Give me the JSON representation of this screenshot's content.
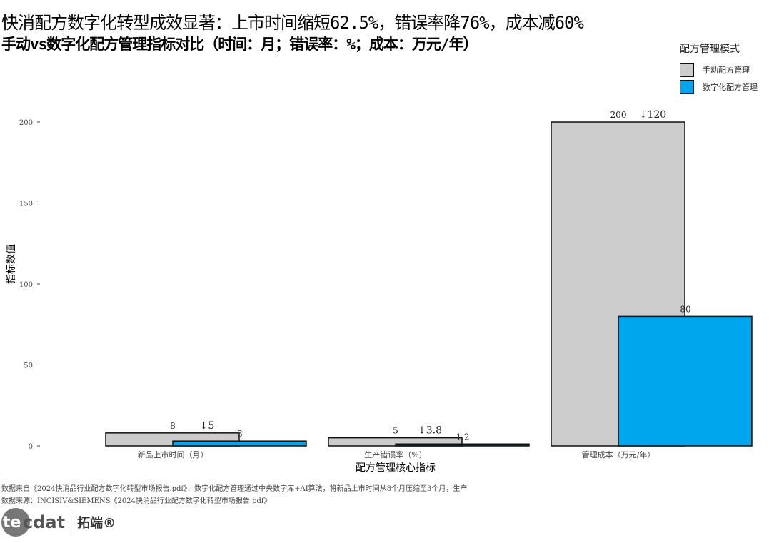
{
  "title": "快消配方数字化转型成效显著：上市时间缩短62.5%，错误率降76%，成本减60%",
  "subtitle": "手动vs数字化配方管理指标对比（时间：月；错误率：%；成本：万元/年）",
  "notes": [
    "数据来自《2024快消品行业配方数字化转型市场报告.pdf》：数字化配方管理通过中央数字库+AI算法，将新品上市时间从8个月压缩至3个月，生产",
    "数据来源：INCISIV&SIEMENS《2024快消品行业配方数字化转型市场报告.pdf》"
  ],
  "logo": {
    "text": "tecdat",
    "cn": "拓端®"
  },
  "colors": {
    "manual": "#CCCCCC",
    "digital": "#00A6ED",
    "digital_dark": "#1A5276"
  },
  "chart_data": {
    "type": "bar",
    "categories": [
      "新品上市时间（月）",
      "生产错误率（%）",
      "管理成本（万元/年）"
    ],
    "series": [
      {
        "name": "手动配方管理",
        "values": [
          8,
          5,
          200
        ]
      },
      {
        "name": "数字化配方管理",
        "values": [
          3,
          1.2,
          80
        ]
      }
    ],
    "annotations": [
      "↓5",
      "↓3.8",
      "↓120"
    ],
    "xlabel": "配方管理核心指标",
    "ylabel": "指标数值",
    "ylim": [
      0,
      200
    ],
    "yticks": [
      0,
      50,
      100,
      150,
      200
    ],
    "legend_title": "配方管理模式",
    "legend_position": "top-right",
    "grid": false
  }
}
